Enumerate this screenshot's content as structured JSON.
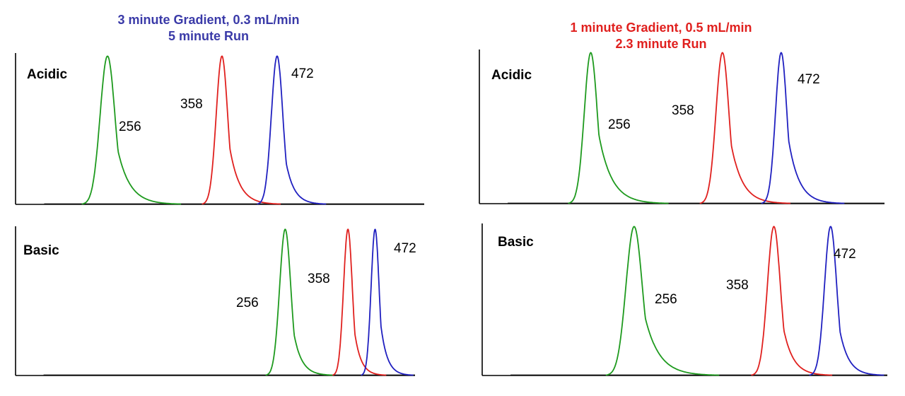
{
  "headers": {
    "left": {
      "line1": "3 minute Gradient, 0.3 mL/min",
      "line2": "5 minute Run",
      "color": "#3a3aa8"
    },
    "right": {
      "line1": "1 minute Gradient, 0.5 mL/min",
      "line2": "2.3 minute Run",
      "color": "#e0201e"
    }
  },
  "chart_data": [
    {
      "type": "line",
      "title": "Acidic",
      "group": "3 minute Gradient, 0.3 mL/min",
      "xlim": [
        0,
        1
      ],
      "ylim": [
        0,
        1
      ],
      "peaks": [
        {
          "label": "256",
          "color": "#1e9a1e",
          "center": 0.225,
          "height": 0.98,
          "width": 0.018,
          "tail": 0.03
        },
        {
          "label": "358",
          "color": "#e0201e",
          "center": 0.505,
          "height": 0.98,
          "width": 0.014,
          "tail": 0.024
        },
        {
          "label": "472",
          "color": "#2020c0",
          "center": 0.64,
          "height": 0.98,
          "width": 0.014,
          "tail": 0.02
        }
      ]
    },
    {
      "type": "line",
      "title": "Basic",
      "group": "3 minute Gradient, 0.3 mL/min",
      "xlim": [
        0,
        1
      ],
      "ylim": [
        0,
        1
      ],
      "peaks": [
        {
          "label": "256",
          "color": "#1e9a1e",
          "center": 0.675,
          "height": 0.98,
          "width": 0.014,
          "tail": 0.02
        },
        {
          "label": "358",
          "color": "#e0201e",
          "center": 0.832,
          "height": 0.98,
          "width": 0.011,
          "tail": 0.016
        },
        {
          "label": "472",
          "color": "#2020c0",
          "center": 0.9,
          "height": 0.98,
          "width": 0.01,
          "tail": 0.016
        }
      ]
    },
    {
      "type": "line",
      "title": "Acidic",
      "group": "1 minute Gradient, 0.5 mL/min",
      "xlim": [
        0,
        1
      ],
      "ylim": [
        0,
        1
      ],
      "peaks": [
        {
          "label": "256",
          "color": "#1e9a1e",
          "center": 0.275,
          "height": 0.98,
          "width": 0.016,
          "tail": 0.032
        },
        {
          "label": "358",
          "color": "#e0201e",
          "center": 0.6,
          "height": 0.98,
          "width": 0.016,
          "tail": 0.028
        },
        {
          "label": "472",
          "color": "#2020c0",
          "center": 0.745,
          "height": 0.98,
          "width": 0.014,
          "tail": 0.026
        }
      ]
    },
    {
      "type": "line",
      "title": "Basic",
      "group": "1 minute Gradient, 0.5 mL/min",
      "xlim": [
        0,
        1
      ],
      "ylim": [
        0,
        1
      ],
      "peaks": [
        {
          "label": "256",
          "color": "#1e9a1e",
          "center": 0.375,
          "height": 0.98,
          "width": 0.02,
          "tail": 0.035
        },
        {
          "label": "358",
          "color": "#e0201e",
          "center": 0.72,
          "height": 0.98,
          "width": 0.016,
          "tail": 0.024
        },
        {
          "label": "472",
          "color": "#2020c0",
          "center": 0.86,
          "height": 0.98,
          "width": 0.015,
          "tail": 0.022
        }
      ]
    }
  ]
}
